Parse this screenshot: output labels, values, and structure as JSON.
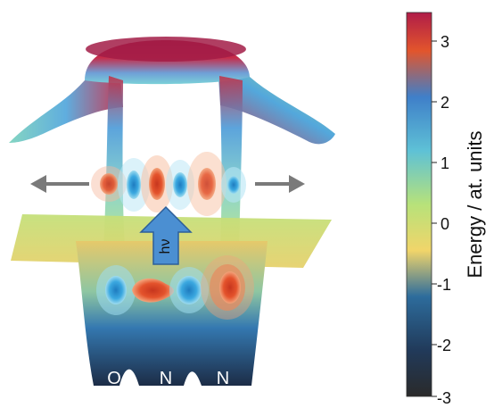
{
  "atoms": [
    "O",
    "N",
    "N"
  ],
  "photon_label": "hν",
  "colorbar": {
    "label": "Energy / at. units",
    "ticks": [
      "3",
      "2",
      "1",
      "0",
      "-1",
      "-2",
      "-3"
    ],
    "colors": [
      "#b01c48",
      "#e2552c",
      "#3f7fc9",
      "#5ec1d6",
      "#b7e27a",
      "#f1d56a",
      "#2d6c9c",
      "#213a5a",
      "#2a2a2a"
    ]
  }
}
